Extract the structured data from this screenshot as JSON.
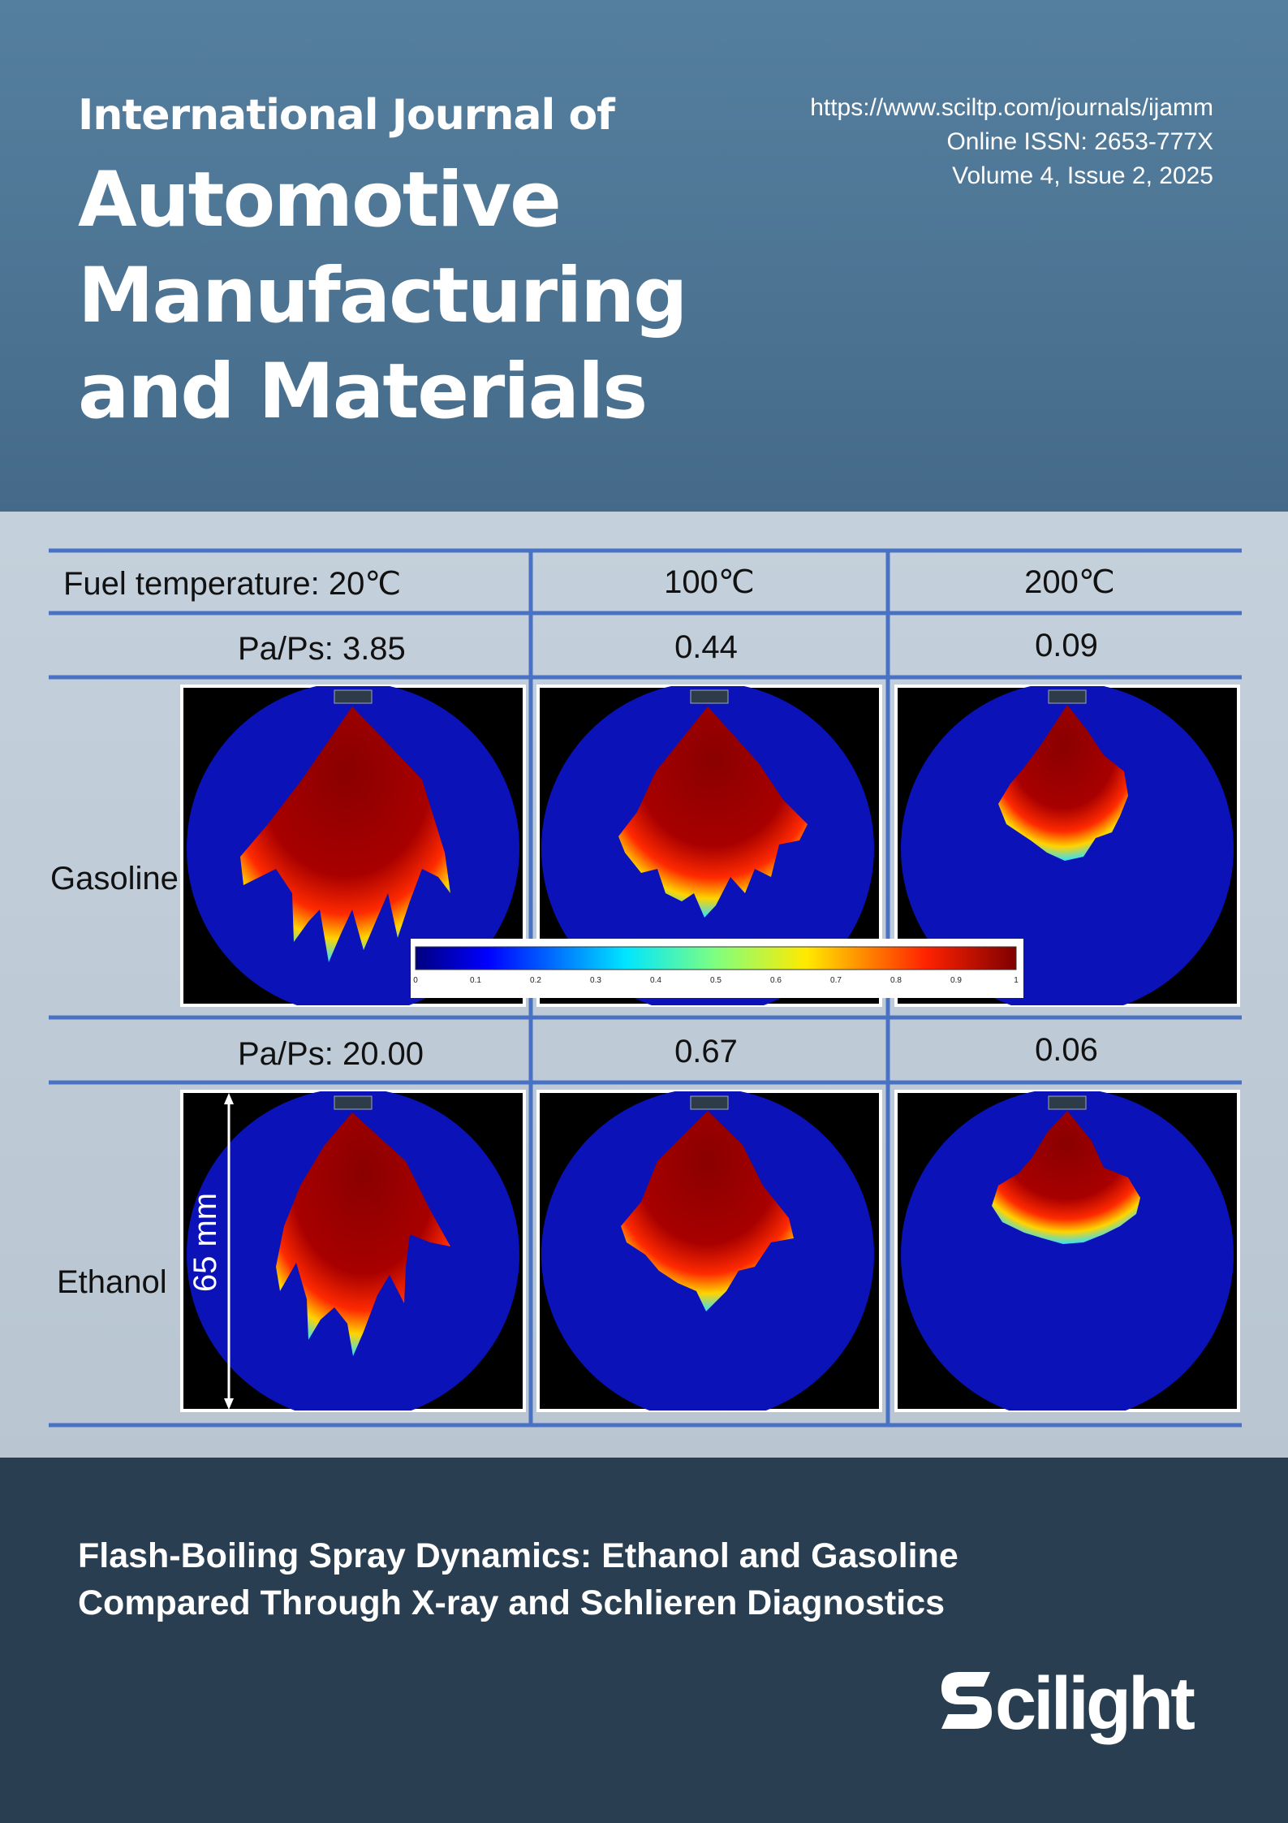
{
  "journal": {
    "prefix": "International Journal of",
    "name_lines": [
      "Automotive",
      "Manufacturing",
      "and Materials"
    ],
    "url": "https://www.sciltp.com/journals/ijamm",
    "issn": "Online ISSN: 2653-777X",
    "volume_issue": "Volume 4, Issue 2, 2025"
  },
  "figure": {
    "headers": [
      "Fuel temperature: 20℃",
      "100℃",
      "200℃"
    ],
    "rows": [
      {
        "fuel": "Gasoline",
        "ratios": [
          "Pa/Ps: 3.85",
          "0.44",
          "0.09"
        ]
      },
      {
        "fuel": "Ethanol",
        "ratios": [
          "Pa/Ps: 20.00",
          "0.67",
          "0.06"
        ]
      }
    ],
    "colorbar_ticks": [
      "0",
      "0.1",
      "0.2",
      "0.3",
      "0.4",
      "0.5",
      "0.6",
      "0.7",
      "0.8",
      "0.9",
      "1"
    ],
    "scale_label": "65 mm",
    "colors": {
      "grid_line": "#4a72c4",
      "chamber": "#0a12b8",
      "spray_core": "#8a0000"
    }
  },
  "article": {
    "title_line1": "Flash-Boiling Spray Dynamics: Ethanol and Gasoline",
    "title_line2": "Compared Through X-ray and Schlieren Diagnostics"
  },
  "publisher": {
    "name": "Scilight"
  }
}
